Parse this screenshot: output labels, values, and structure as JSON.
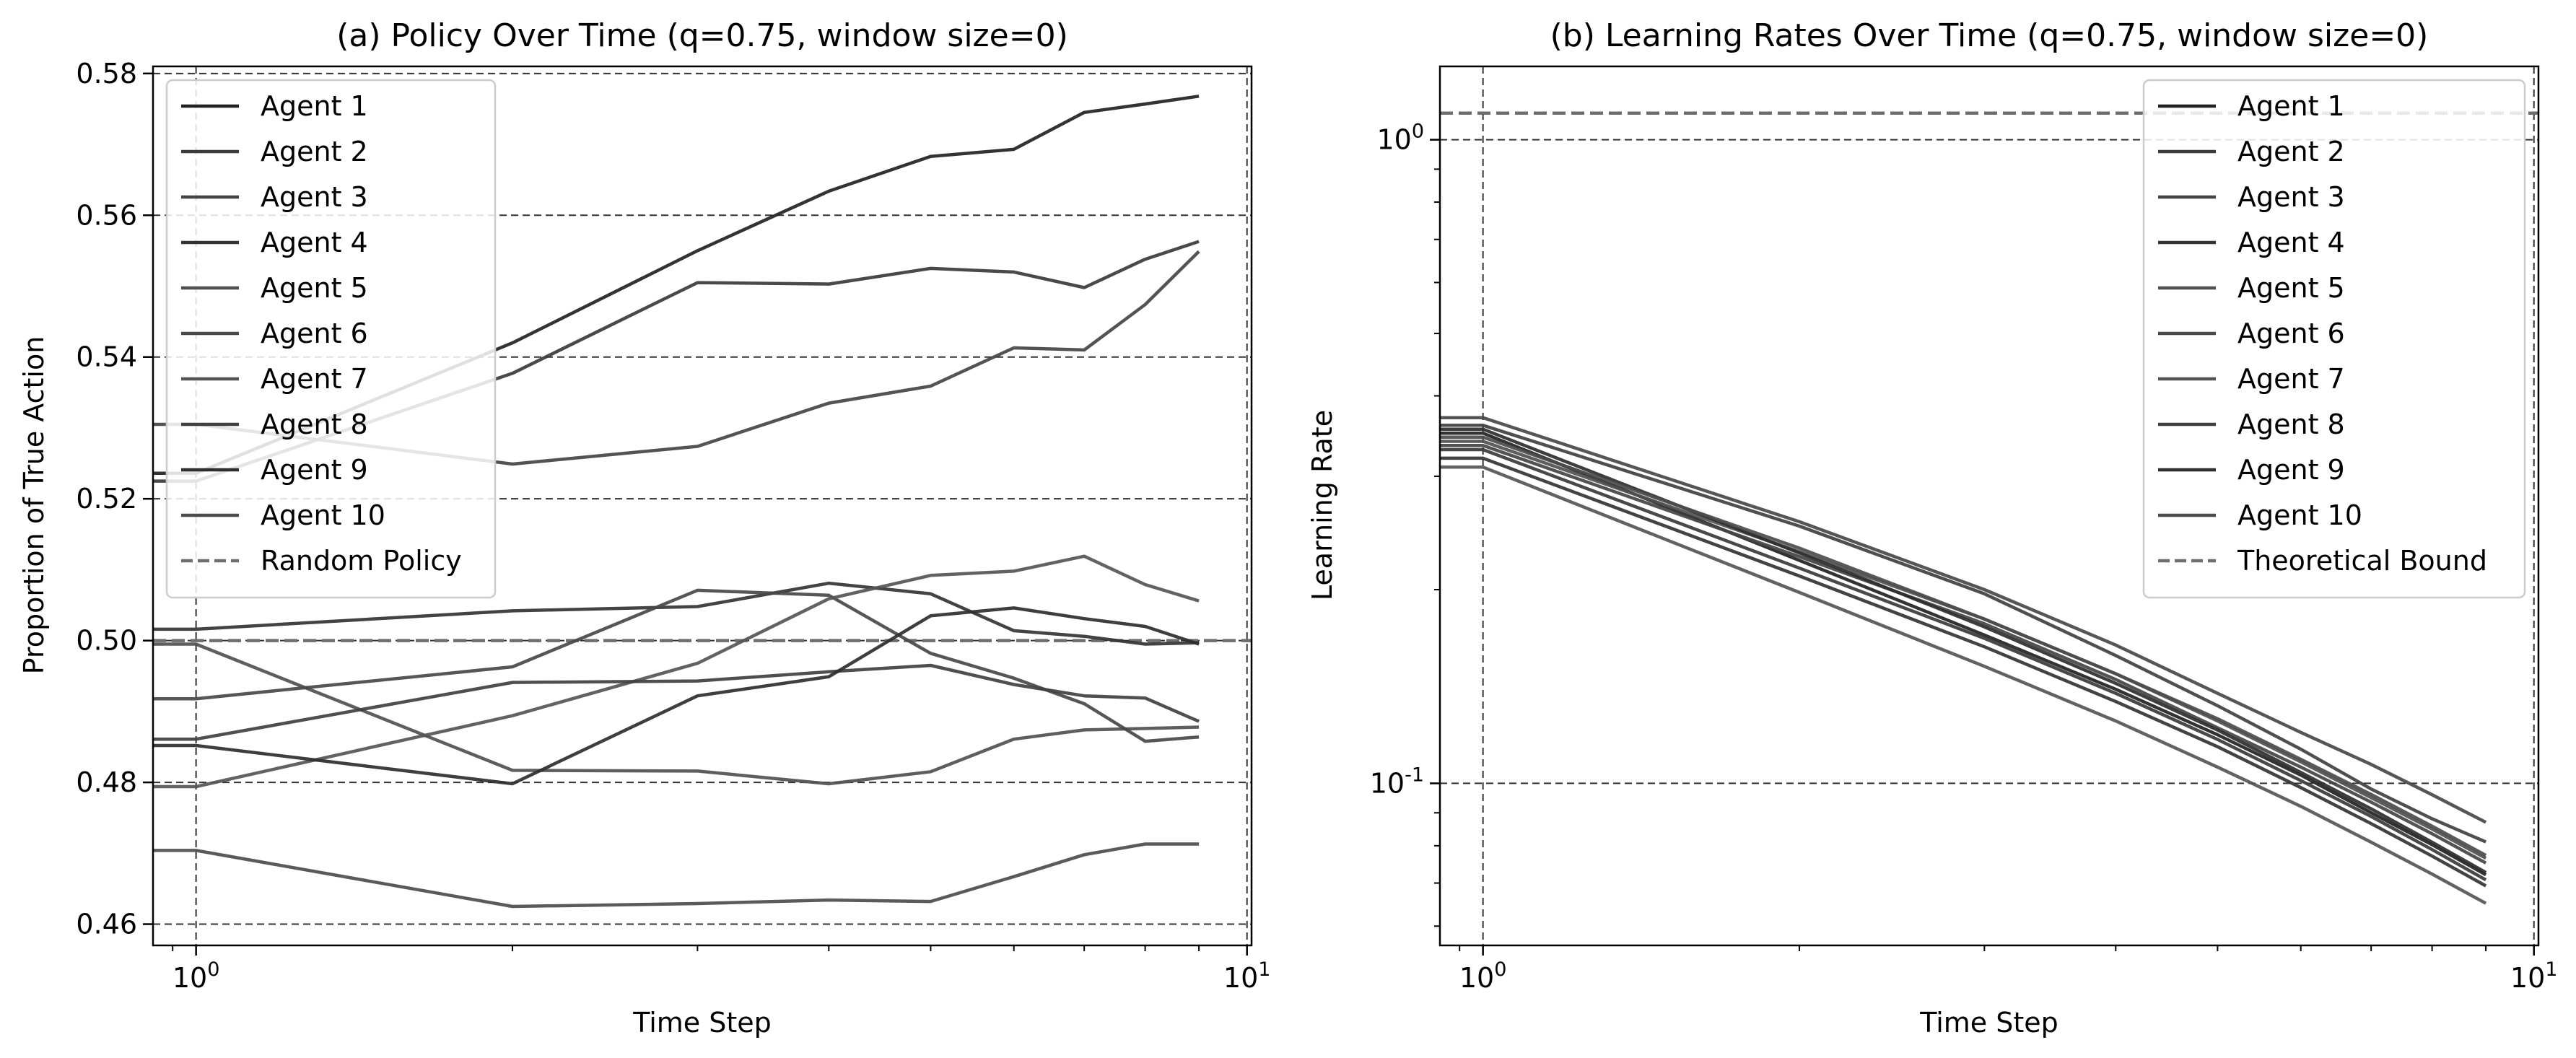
{
  "chart_data": [
    {
      "type": "line",
      "title": "(a) Policy Over Time (q=0.75, window size=0)",
      "xlabel": "Time Step",
      "ylabel": "Proportion of True Action",
      "xscale": "log",
      "xlim": [
        0.91,
        10.1
      ],
      "ylim": [
        0.457,
        0.581
      ],
      "xticks": [
        {
          "value": 1,
          "label": "10^0"
        },
        {
          "value": 10,
          "label": "10^1"
        }
      ],
      "yticks": [
        0.46,
        0.48,
        0.5,
        0.52,
        0.54,
        0.56,
        0.58
      ],
      "ytick_labels": [
        "0.46",
        "0.48",
        "0.50",
        "0.52",
        "0.54",
        "0.56",
        "0.58"
      ],
      "grid": true,
      "legend_position": "upper left",
      "x": [
        0.91,
        1,
        2,
        3,
        4,
        5,
        6,
        7,
        8,
        9
      ],
      "series": [
        {
          "name": "Agent 1",
          "values": [
            0.5236,
            0.5236,
            0.542,
            0.555,
            0.5634,
            0.5683,
            0.5693,
            0.5745,
            0.5757,
            0.5768
          ]
        },
        {
          "name": "Agent 2",
          "values": [
            0.5225,
            0.5225,
            0.5377,
            0.5505,
            0.5503,
            0.5525,
            0.552,
            0.5498,
            0.5538,
            0.5563
          ]
        },
        {
          "name": "Agent 3",
          "values": [
            0.5305,
            0.5305,
            0.5249,
            0.5274,
            0.5335,
            0.5359,
            0.5413,
            0.541,
            0.5474,
            0.5549
          ]
        },
        {
          "name": "Agent 4",
          "values": [
            0.5016,
            0.5016,
            0.5042,
            0.5048,
            0.5081,
            0.5066,
            0.5014,
            0.5006,
            0.4995,
            0.4997
          ]
        },
        {
          "name": "Agent 5",
          "values": [
            0.4995,
            0.4995,
            0.4817,
            0.4816,
            0.4798,
            0.4815,
            0.4861,
            0.4874,
            0.4876,
            0.4878
          ]
        },
        {
          "name": "Agent 6",
          "values": [
            0.4918,
            0.4918,
            0.4963,
            0.5071,
            0.5064,
            0.4982,
            0.4947,
            0.4911,
            0.4858,
            0.4864
          ]
        },
        {
          "name": "Agent 7",
          "values": [
            0.4794,
            0.4794,
            0.4894,
            0.4968,
            0.5059,
            0.5092,
            0.5098,
            0.5119,
            0.5079,
            0.5056
          ]
        },
        {
          "name": "Agent 8",
          "values": [
            0.4861,
            0.4861,
            0.4941,
            0.4943,
            0.4956,
            0.4965,
            0.4938,
            0.4922,
            0.4919,
            0.4886
          ]
        },
        {
          "name": "Agent 9",
          "values": [
            0.4852,
            0.4852,
            0.4798,
            0.4922,
            0.4949,
            0.5035,
            0.5046,
            0.5031,
            0.502,
            0.4995
          ]
        },
        {
          "name": "Agent 10",
          "values": [
            0.4704,
            0.4704,
            0.4625,
            0.4629,
            0.4634,
            0.4632,
            0.4667,
            0.4698,
            0.4713,
            0.4713
          ]
        }
      ],
      "reference_line": {
        "name": "Random Policy",
        "value": 0.5,
        "style": "dashed"
      }
    },
    {
      "type": "line",
      "title": "(b) Learning Rates Over Time (q=0.75, window size=0)",
      "xlabel": "Time Step",
      "ylabel": "Learning Rate",
      "xscale": "log",
      "yscale": "log",
      "xlim": [
        0.91,
        10.1
      ],
      "ylim": [
        0.056,
        1.3
      ],
      "xticks": [
        {
          "value": 1,
          "label": "10^0"
        },
        {
          "value": 10,
          "label": "10^1"
        }
      ],
      "yticks": [
        {
          "value": 0.1,
          "label": "10^-1"
        },
        {
          "value": 1,
          "label": "10^0"
        }
      ],
      "grid": true,
      "legend_position": "upper right",
      "x": [
        0.91,
        1,
        2,
        3,
        4,
        5,
        6,
        7,
        8,
        9
      ],
      "series": [
        {
          "name": "Agent 1",
          "values": [
            0.35,
            0.35,
            0.222,
            0.17,
            0.14,
            0.119,
            0.103,
            0.09,
            0.0803,
            0.0721
          ]
        },
        {
          "name": "Agent 2",
          "values": [
            0.33,
            0.33,
            0.216,
            0.168,
            0.138,
            0.117,
            0.101,
            0.0888,
            0.0789,
            0.0708
          ]
        },
        {
          "name": "Agent 3",
          "values": [
            0.335,
            0.335,
            0.225,
            0.177,
            0.145,
            0.122,
            0.106,
            0.0935,
            0.0835,
            0.0752
          ]
        },
        {
          "name": "Agent 4",
          "values": [
            0.32,
            0.32,
            0.21,
            0.163,
            0.134,
            0.114,
            0.0985,
            0.0866,
            0.0771,
            0.0693
          ]
        },
        {
          "name": "Agent 5",
          "values": [
            0.34,
            0.34,
            0.229,
            0.18,
            0.148,
            0.125,
            0.108,
            0.095,
            0.0849,
            0.0765
          ]
        },
        {
          "name": "Agent 6",
          "values": [
            0.37,
            0.37,
            0.255,
            0.2,
            0.164,
            0.138,
            0.12,
            0.107,
            0.096,
            0.087
          ]
        },
        {
          "name": "Agent 7",
          "values": [
            0.31,
            0.31,
            0.198,
            0.152,
            0.125,
            0.106,
            0.0921,
            0.081,
            0.0723,
            0.0651
          ]
        },
        {
          "name": "Agent 8",
          "values": [
            0.36,
            0.36,
            0.251,
            0.197,
            0.158,
            0.132,
            0.113,
            0.098,
            0.0881,
            0.0811
          ]
        },
        {
          "name": "Agent 9",
          "values": [
            0.355,
            0.355,
            0.228,
            0.175,
            0.143,
            0.121,
            0.104,
            0.0913,
            0.081,
            0.0727
          ]
        },
        {
          "name": "Agent 10",
          "values": [
            0.345,
            0.345,
            0.232,
            0.18,
            0.148,
            0.126,
            0.109,
            0.0961,
            0.0858,
            0.0773
          ]
        }
      ],
      "reference_line": {
        "name": "Theoretical Bound",
        "value": 1.1,
        "style": "dashed"
      }
    }
  ]
}
